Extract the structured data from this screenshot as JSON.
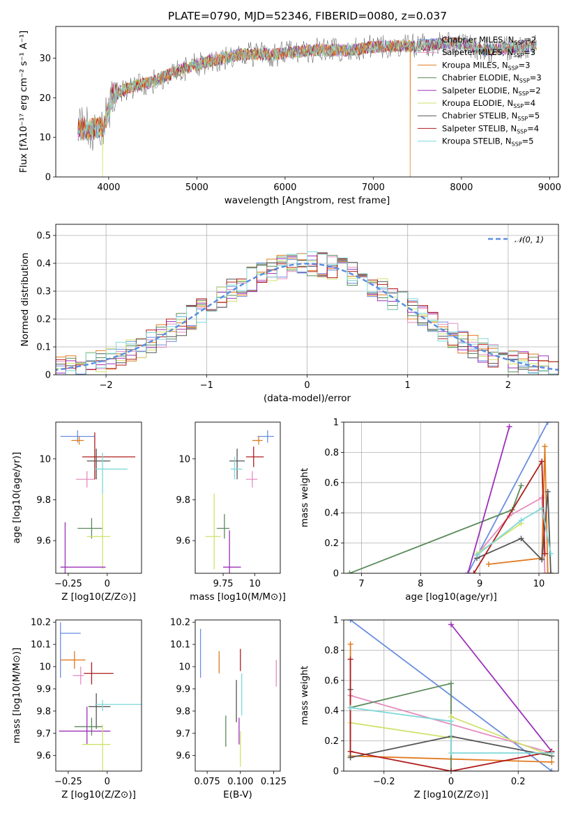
{
  "figure_title": "PLATE=0790, MJD=52346, FIBERID=0080, z=0.037",
  "colors": {
    "Chabrier MILES": "#6a8ee0",
    "Salpeter MILES": "#e58cbf",
    "Kroupa MILES": "#e07b1f",
    "Chabrier ELODIE": "#5a8a5a",
    "Salpeter ELODIE": "#9b30b8",
    "Kroupa ELODIE": "#cfe26a",
    "Chabrier STELIB": "#555555",
    "Salpeter STELIB": "#b01c1c",
    "Kroupa STELIB": "#7fd8d8",
    "normal": "#5b8ee0",
    "grid": "#b0b0b0"
  },
  "chart_data": [
    {
      "id": "spectrum",
      "type": "line",
      "title": "PLATE=0790, MJD=52346, FIBERID=0080, z=0.037",
      "xlabel": "wavelength [Angstrom, rest frame]",
      "ylabel": "Flux [f$_\\lambda$10$^{-17}$ erg cm$^{-2}$ s$^{-1}$ A$^{-1}$]",
      "ylabel_display": "Flux [fλ10⁻¹⁷ erg cm⁻² s⁻¹ A⁻¹]",
      "xlim": [
        3400,
        9100
      ],
      "ylim": [
        0,
        38
      ],
      "xticks": [
        4000,
        5000,
        6000,
        7000,
        8000,
        9000
      ],
      "yticks": [
        0,
        10,
        20,
        30
      ],
      "grid": false,
      "legend_position": "top-right",
      "legend": [
        {
          "model": "Chabrier MILES",
          "nssp": "2"
        },
        {
          "model": "Salpeter MILES",
          "nssp": "3"
        },
        {
          "model": "Kroupa MILES",
          "nssp": "3"
        },
        {
          "model": "Chabrier ELODIE",
          "nssp": "3"
        },
        {
          "model": "Salpeter ELODIE",
          "nssp": "2"
        },
        {
          "model": "Kroupa ELODIE",
          "nssp": "4"
        },
        {
          "model": "Chabrier STELIB",
          "nssp": "5"
        },
        {
          "model": "Salpeter STELIB",
          "nssp": "4"
        },
        {
          "model": "Kroupa STELIB",
          "nssp": "5"
        }
      ],
      "continuum": {
        "x": [
          3650,
          3800,
          3950,
          4050,
          4300,
          4500,
          4800,
          5100,
          5500,
          5900,
          6300,
          6700,
          7100,
          7500,
          7900,
          8300,
          8700,
          8850
        ],
        "y": [
          12,
          12,
          13,
          21,
          23,
          24,
          27,
          29,
          31,
          31,
          32,
          32,
          33,
          33,
          34,
          32,
          33,
          33
        ]
      },
      "dropouts": [
        {
          "model": "Kroupa ELODIE",
          "x": 3930
        },
        {
          "model": "Kroupa ELODIE",
          "x": 6790
        },
        {
          "model": "Kroupa MILES",
          "x": 7420
        }
      ]
    },
    {
      "id": "residuals",
      "type": "histogram",
      "xlabel": "(data-model)/error",
      "ylabel": "Normed distribution",
      "xlim": [
        -2.5,
        2.5
      ],
      "ylim": [
        0,
        0.54
      ],
      "xticks": [
        -2,
        -1,
        0,
        1,
        2
      ],
      "yticks": [
        0.0,
        0.1,
        0.2,
        0.3,
        0.4,
        0.5
      ],
      "grid": true,
      "bin_width": 0.1,
      "legend": [
        "N(0,1)"
      ],
      "legend_position": "top-right",
      "reference_curve": "normal pdf, mean 0, sigma 1"
    },
    {
      "id": "age-vs-Z",
      "type": "errorbar",
      "xlabel": "Z [log10(Z/Z⊙)]",
      "ylabel": "age  [log10(age/yr)]",
      "xlim": [
        -0.33,
        0.22
      ],
      "ylim": [
        9.44,
        10.18
      ],
      "xticks": [
        -0.25,
        0.0
      ],
      "yticks": [
        9.6,
        9.8,
        10.0
      ],
      "points": [
        {
          "model": "Chabrier MILES",
          "x": -0.19,
          "xerr": [
            0.11,
            0.11
          ],
          "y": 10.11,
          "yerr": [
            0.03,
            0.03
          ]
        },
        {
          "model": "Kroupa MILES",
          "x": -0.18,
          "xerr": [
            0.05,
            0.03
          ],
          "y": 10.09,
          "yerr": [
            0.02,
            0.02
          ]
        },
        {
          "model": "Salpeter MILES",
          "x": -0.13,
          "xerr": [
            0.07,
            0.05
          ],
          "y": 9.9,
          "yerr": [
            0.04,
            0.04
          ]
        },
        {
          "model": "Salpeter STELIB",
          "x": -0.08,
          "xerr": [
            0.08,
            0.26
          ],
          "y": 10.01,
          "yerr": [
            0.11,
            0.12
          ]
        },
        {
          "model": "Chabrier STELIB",
          "x": -0.07,
          "xerr": [
            0.06,
            0.09
          ],
          "y": 9.99,
          "yerr": [
            0.09,
            0.06
          ]
        },
        {
          "model": "Kroupa STELIB",
          "x": -0.03,
          "xerr": [
            0.05,
            0.16
          ],
          "y": 9.95,
          "yerr": [
            0.12,
            0.08
          ]
        },
        {
          "model": "Chabrier ELODIE",
          "x": -0.1,
          "xerr": [
            0.09,
            0.07
          ],
          "y": 9.66,
          "yerr": [
            0.05,
            0.05
          ]
        },
        {
          "model": "Kroupa ELODIE",
          "x": -0.03,
          "xerr": [
            0.1,
            0.05
          ],
          "y": 9.62,
          "yerr": [
            0.16,
            0.21
          ]
        },
        {
          "model": "Salpeter ELODIE",
          "x": -0.27,
          "xerr": [
            0.03,
            0.26
          ],
          "y": 9.47,
          "yerr": [
            0.06,
            0.22
          ]
        }
      ]
    },
    {
      "id": "age-vs-mass",
      "type": "errorbar",
      "xlabel": "mass [log10(M/M⊙)]",
      "ylabel": "",
      "xlim": [
        9.53,
        10.2
      ],
      "ylim": [
        9.44,
        10.18
      ],
      "xticks": [
        9.75,
        10.0
      ],
      "yticks": [
        9.6,
        9.8,
        10.0
      ],
      "points": [
        {
          "model": "Chabrier MILES",
          "x": 10.1,
          "xerr": [
            0.08,
            0.05
          ],
          "y": 10.11,
          "yerr": [
            0.03,
            0.03
          ]
        },
        {
          "model": "Kroupa MILES",
          "x": 10.03,
          "xerr": [
            0.05,
            0.03
          ],
          "y": 10.09,
          "yerr": [
            0.02,
            0.02
          ]
        },
        {
          "model": "Salpeter MILES",
          "x": 9.98,
          "xerr": [
            0.05,
            0.04
          ],
          "y": 9.9,
          "yerr": [
            0.04,
            0.04
          ]
        },
        {
          "model": "Salpeter STELIB",
          "x": 9.99,
          "xerr": [
            0.06,
            0.08
          ],
          "y": 10.01,
          "yerr": [
            0.05,
            0.05
          ]
        },
        {
          "model": "Chabrier STELIB",
          "x": 9.86,
          "xerr": [
            0.06,
            0.06
          ],
          "y": 9.99,
          "yerr": [
            0.09,
            0.06
          ]
        },
        {
          "model": "Kroupa STELIB",
          "x": 9.84,
          "xerr": [
            0.03,
            0.06
          ],
          "y": 9.95,
          "yerr": [
            0.05,
            0.06
          ]
        },
        {
          "model": "Chabrier ELODIE",
          "x": 9.76,
          "xerr": [
            0.06,
            0.04
          ],
          "y": 9.66,
          "yerr": [
            0.05,
            0.07
          ]
        },
        {
          "model": "Kroupa ELODIE",
          "x": 9.68,
          "xerr": [
            0.07,
            0.05
          ],
          "y": 9.62,
          "yerr": [
            0.16,
            0.21
          ]
        },
        {
          "model": "Salpeter ELODIE",
          "x": 9.8,
          "xerr": [
            0.05,
            0.09
          ],
          "y": 9.47,
          "yerr": [
            0.03,
            0.18
          ]
        }
      ]
    },
    {
      "id": "massweight-vs-age",
      "type": "line",
      "xlabel": "age  [log10(age/yr)]",
      "ylabel": "mass weight",
      "xlim": [
        6.7,
        10.33
      ],
      "ylim": [
        0,
        1.0
      ],
      "xticks": [
        7,
        8,
        9,
        10
      ],
      "yticks": [
        0.0,
        0.2,
        0.4,
        0.6,
        0.8,
        1.0
      ],
      "grid": true,
      "series": [
        {
          "model": "Chabrier MILES",
          "x": [
            8.8,
            10.15
          ],
          "y": [
            0.0,
            1.0
          ]
        },
        {
          "model": "Salpeter MILES",
          "x": [
            8.95,
            9.5,
            10.05,
            10.1
          ],
          "y": [
            0.12,
            0.38,
            0.5,
            0.0
          ]
        },
        {
          "model": "Kroupa MILES",
          "x": [
            9.15,
            10.05,
            10.1,
            10.15
          ],
          "y": [
            0.06,
            0.1,
            0.84,
            0.0
          ]
        },
        {
          "model": "Chabrier ELODIE",
          "x": [
            6.8,
            9.55,
            9.7
          ],
          "y": [
            0.0,
            0.42,
            0.58
          ]
        },
        {
          "model": "Salpeter ELODIE",
          "x": [
            8.8,
            9.5
          ],
          "y": [
            0.0,
            0.97
          ]
        },
        {
          "model": "Kroupa ELODIE",
          "x": [
            8.95,
            9.7
          ],
          "y": [
            0.13,
            0.33
          ]
        },
        {
          "model": "Chabrier STELIB",
          "x": [
            8.95,
            9.7,
            10.05,
            10.15,
            10.2
          ],
          "y": [
            0.1,
            0.23,
            0.09,
            0.54,
            0.0
          ]
        },
        {
          "model": "Salpeter STELIB",
          "x": [
            8.9,
            10.05,
            10.1
          ],
          "y": [
            0.0,
            0.74,
            0.13
          ]
        },
        {
          "model": "Kroupa STELIB",
          "x": [
            8.95,
            9.7,
            10.05,
            10.2
          ],
          "y": [
            0.12,
            0.35,
            0.43,
            0.13
          ]
        }
      ]
    },
    {
      "id": "mass-vs-Z",
      "type": "errorbar",
      "xlabel": "Z [log10(Z/Z⊙)]",
      "ylabel": "mass [log10(M/M⊙)]",
      "xlim": [
        -0.33,
        0.22
      ],
      "ylim": [
        9.53,
        10.21
      ],
      "xticks": [
        -0.25,
        0.0
      ],
      "yticks": [
        9.6,
        9.7,
        9.8,
        9.9,
        10.0,
        10.1,
        10.2
      ],
      "points": [
        {
          "model": "Chabrier MILES",
          "x": -0.3,
          "xerr": [
            0.0,
            0.13
          ],
          "y": 10.15,
          "yerr": [
            0.2,
            0.05
          ]
        },
        {
          "model": "Kroupa MILES",
          "x": -0.21,
          "xerr": [
            0.09,
            0.07
          ],
          "y": 10.03,
          "yerr": [
            0.04,
            0.04
          ]
        },
        {
          "model": "Salpeter MILES",
          "x": -0.17,
          "xerr": [
            0.05,
            0.02
          ],
          "y": 9.96,
          "yerr": [
            0.04,
            0.04
          ]
        },
        {
          "model": "Salpeter STELIB",
          "x": -0.1,
          "xerr": [
            0.05,
            0.14
          ],
          "y": 9.97,
          "yerr": [
            0.05,
            0.05
          ]
        },
        {
          "model": "Chabrier STELIB",
          "x": -0.07,
          "xerr": [
            0.05,
            0.09
          ],
          "y": 9.82,
          "yerr": [
            0.1,
            0.06
          ]
        },
        {
          "model": "Kroupa STELIB",
          "x": -0.03,
          "xerr": [
            0.05,
            0.28
          ],
          "y": 9.83,
          "yerr": [
            0.03,
            0.02
          ]
        },
        {
          "model": "Chabrier ELODIE",
          "x": -0.1,
          "xerr": [
            0.11,
            0.07
          ],
          "y": 9.73,
          "yerr": [
            0.04,
            0.04
          ]
        },
        {
          "model": "Salpeter ELODIE",
          "x": -0.13,
          "xerr": [
            0.18,
            0.15
          ],
          "y": 9.71,
          "yerr": [
            0.06,
            0.11
          ]
        },
        {
          "model": "Kroupa ELODIE",
          "x": -0.03,
          "xerr": [
            0.13,
            0.05
          ],
          "y": 9.65,
          "yerr": [
            0.12,
            0.09
          ]
        }
      ]
    },
    {
      "id": "mass-vs-EBV",
      "type": "errorbar",
      "xlabel": "E(B-V)",
      "ylabel": "",
      "xlim": [
        0.066,
        0.13
      ],
      "ylim": [
        9.53,
        10.21
      ],
      "xticks": [
        0.075,
        0.1,
        0.125
      ],
      "xtick_labels": [
        "0.075",
        "0.100",
        "0.125"
      ],
      "yticks": [
        9.6,
        9.7,
        9.8,
        9.9,
        10.0,
        10.1,
        10.2
      ],
      "points": [
        {
          "model": "Chabrier MILES",
          "x": 0.07,
          "y": 10.1,
          "yerr": [
            0.15,
            0.07
          ]
        },
        {
          "model": "Kroupa MILES",
          "x": 0.084,
          "y": 10.02,
          "yerr": [
            0.05,
            0.05
          ]
        },
        {
          "model": "Salpeter MILES",
          "x": 0.127,
          "y": 9.97,
          "yerr": [
            0.06,
            0.06
          ]
        },
        {
          "model": "Salpeter STELIB",
          "x": 0.1,
          "y": 10.03,
          "yerr": [
            0.05,
            0.05
          ]
        },
        {
          "model": "Chabrier STELIB",
          "x": 0.097,
          "y": 9.86,
          "yerr": [
            0.11,
            0.08
          ]
        },
        {
          "model": "Kroupa STELIB",
          "x": 0.101,
          "y": 9.86,
          "yerr": [
            0.08,
            0.11
          ]
        },
        {
          "model": "Chabrier ELODIE",
          "x": 0.089,
          "y": 9.73,
          "yerr": [
            0.09,
            0.05
          ]
        },
        {
          "model": "Kroupa ELODIE",
          "x": 0.1,
          "y": 9.66,
          "yerr": [
            0.11,
            0.05
          ]
        },
        {
          "model": "Salpeter ELODIE",
          "x": 0.099,
          "y": 9.72,
          "yerr": [
            0.07,
            0.05
          ]
        }
      ]
    },
    {
      "id": "massweight-vs-Z",
      "type": "line",
      "xlabel": "Z [log10(Z/Z⊙)]",
      "ylabel": "mass weight",
      "xlim": [
        -0.32,
        0.32
      ],
      "ylim": [
        0,
        1.0
      ],
      "xticks": [
        -0.2,
        0.0,
        0.2
      ],
      "yticks": [
        0.0,
        0.2,
        0.4,
        0.6,
        0.8,
        1.0
      ],
      "grid": true,
      "series": [
        {
          "model": "Chabrier MILES",
          "x": [
            -0.3,
            0.3
          ],
          "y": [
            1.0,
            0.0
          ]
        },
        {
          "model": "Salpeter MILES",
          "x": [
            -0.3,
            0.3
          ],
          "y": [
            0.5,
            0.12
          ]
        },
        {
          "model": "Kroupa MILES",
          "x": [
            -0.3,
            -0.3,
            0.3
          ],
          "y": [
            0.84,
            0.1,
            0.06
          ]
        },
        {
          "model": "Chabrier ELODIE",
          "x": [
            -0.3,
            0.0,
            0.0
          ],
          "y": [
            0.42,
            0.58,
            0.0
          ]
        },
        {
          "model": "Salpeter ELODIE",
          "x": [
            0.0,
            0.3
          ],
          "y": [
            0.97,
            0.13
          ]
        },
        {
          "model": "Kroupa ELODIE",
          "x": [
            -0.3,
            0.0,
            0.0,
            0.3
          ],
          "y": [
            0.32,
            0.22,
            0.36,
            0.1
          ]
        },
        {
          "model": "Chabrier STELIB",
          "x": [
            -0.3,
            -0.3,
            0.0,
            0.3
          ],
          "y": [
            0.54,
            0.09,
            0.23,
            0.1
          ]
        },
        {
          "model": "Salpeter STELIB",
          "x": [
            -0.3,
            -0.3,
            0.0,
            0.3
          ],
          "y": [
            0.74,
            0.13,
            0.0,
            0.13
          ]
        },
        {
          "model": "Kroupa STELIB",
          "x": [
            -0.3,
            0.0,
            0.0,
            0.3
          ],
          "y": [
            0.42,
            0.33,
            0.12,
            0.12
          ]
        }
      ]
    }
  ]
}
